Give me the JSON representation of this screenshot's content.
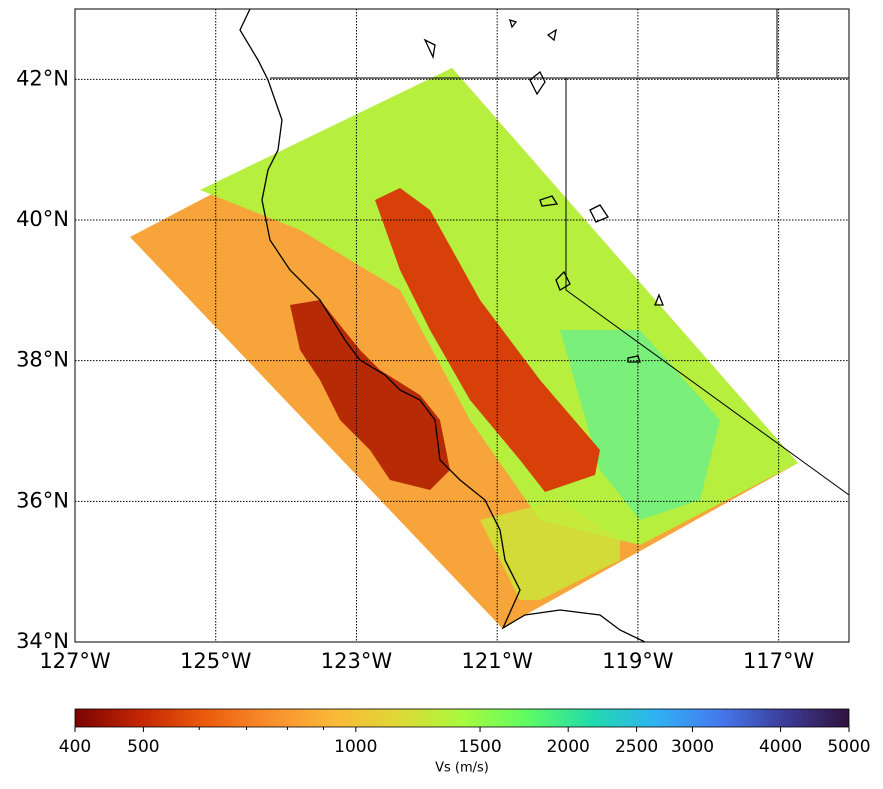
{
  "chart_data": {
    "type": "map",
    "xlim": [
      -127,
      -116
    ],
    "ylim": [
      34,
      43
    ],
    "xticks": [
      {
        "value": -127,
        "label": "127°W"
      },
      {
        "value": -125,
        "label": "125°W"
      },
      {
        "value": -123,
        "label": "123°W"
      },
      {
        "value": -121,
        "label": "121°W"
      },
      {
        "value": -119,
        "label": "119°W"
      },
      {
        "value": -117,
        "label": "117°W"
      }
    ],
    "yticks": [
      {
        "value": 34,
        "label": "34°N"
      },
      {
        "value": 36,
        "label": "36°N"
      },
      {
        "value": 38,
        "label": "38°N"
      },
      {
        "value": 40,
        "label": "40°N"
      },
      {
        "value": 42,
        "label": "42°N"
      }
    ],
    "grid": true,
    "colorbar": {
      "label": "Vs (m/s)",
      "scale": "log",
      "lim": [
        400,
        5000
      ],
      "ticks": [
        400,
        500,
        1000,
        1500,
        2000,
        2500,
        3000,
        4000,
        5000
      ],
      "minor_ticks": [
        600,
        700,
        800,
        900
      ],
      "colors": [
        "#7a0403",
        "#c42503",
        "#ea5a0c",
        "#f98e2b",
        "#fbb838",
        "#dfd835",
        "#a8fa3c",
        "#5ffc63",
        "#22dbab",
        "#2fb2f3",
        "#4579ee",
        "#3c3c9a",
        "#30123b"
      ]
    }
  }
}
